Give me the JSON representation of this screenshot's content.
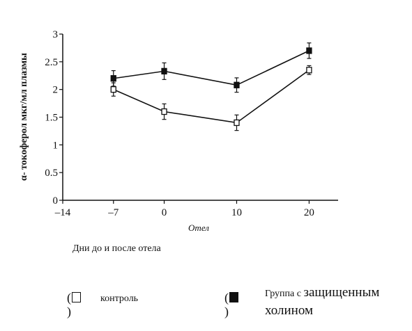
{
  "chart_data": {
    "type": "line",
    "xlabel": "Дни до и после отела",
    "ylabel": "α- токоферол мкг/мл плазмы",
    "annotation": "Отел",
    "xlim": [
      -14,
      24
    ],
    "ylim": [
      0,
      3
    ],
    "x_ticks": [
      -14,
      -7,
      0,
      10,
      20
    ],
    "x_tick_labels": [
      "–14",
      "–7",
      "0",
      "10",
      "20"
    ],
    "y_ticks": [
      0,
      0.5,
      1,
      1.5,
      2,
      2.5,
      3
    ],
    "y_tick_labels": [
      "0",
      "0.5",
      "1",
      "1.5",
      "2",
      "2.5",
      "3"
    ],
    "grid": false,
    "legend_position": "bottom",
    "series": [
      {
        "name": "контроль",
        "marker": "open-square",
        "x": [
          -7,
          0,
          10,
          20
        ],
        "y": [
          2.0,
          1.6,
          1.4,
          2.35
        ],
        "err": [
          0.12,
          0.14,
          0.14,
          0.08
        ]
      },
      {
        "name": "Группа с защищенным холином",
        "marker": "filled-square",
        "x": [
          -7,
          0,
          10,
          20
        ],
        "y": [
          2.2,
          2.33,
          2.08,
          2.7
        ],
        "err": [
          0.14,
          0.15,
          0.13,
          0.14
        ]
      }
    ]
  },
  "legend": {
    "control": {
      "marker": "(□)",
      "label": "контроль"
    },
    "choline": {
      "marker": "(■)",
      "label_small": "Группа с ",
      "label_big": "защищенным",
      "label_line2": "холином"
    }
  }
}
